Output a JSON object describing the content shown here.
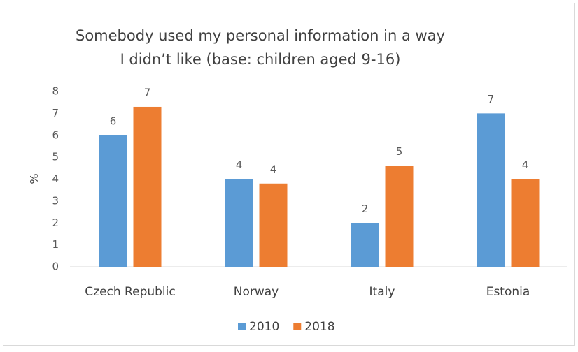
{
  "chart_data": {
    "type": "bar",
    "title": [
      "Somebody used my personal information in a way",
      "I didn’t like (base: children aged 9-16)"
    ],
    "ylabel": "%",
    "categories": [
      "Czech Republic",
      "Norway",
      "Italy",
      "Estonia"
    ],
    "series": [
      {
        "name": "2010",
        "color": "#5b9bd5",
        "values": [
          6.0,
          4.0,
          2.0,
          7.0
        ],
        "value_labels": [
          "6",
          "4",
          "2",
          "7"
        ]
      },
      {
        "name": "2018",
        "color": "#ed7d31",
        "values": [
          7.3,
          3.8,
          4.6,
          4.0
        ],
        "value_labels": [
          "7",
          "4",
          "5",
          "4"
        ]
      }
    ],
    "ylim": [
      0,
      8
    ],
    "yticks": [
      0,
      1,
      2,
      3,
      4,
      5,
      6,
      7,
      8
    ],
    "grid": false,
    "legend": "bottom"
  }
}
